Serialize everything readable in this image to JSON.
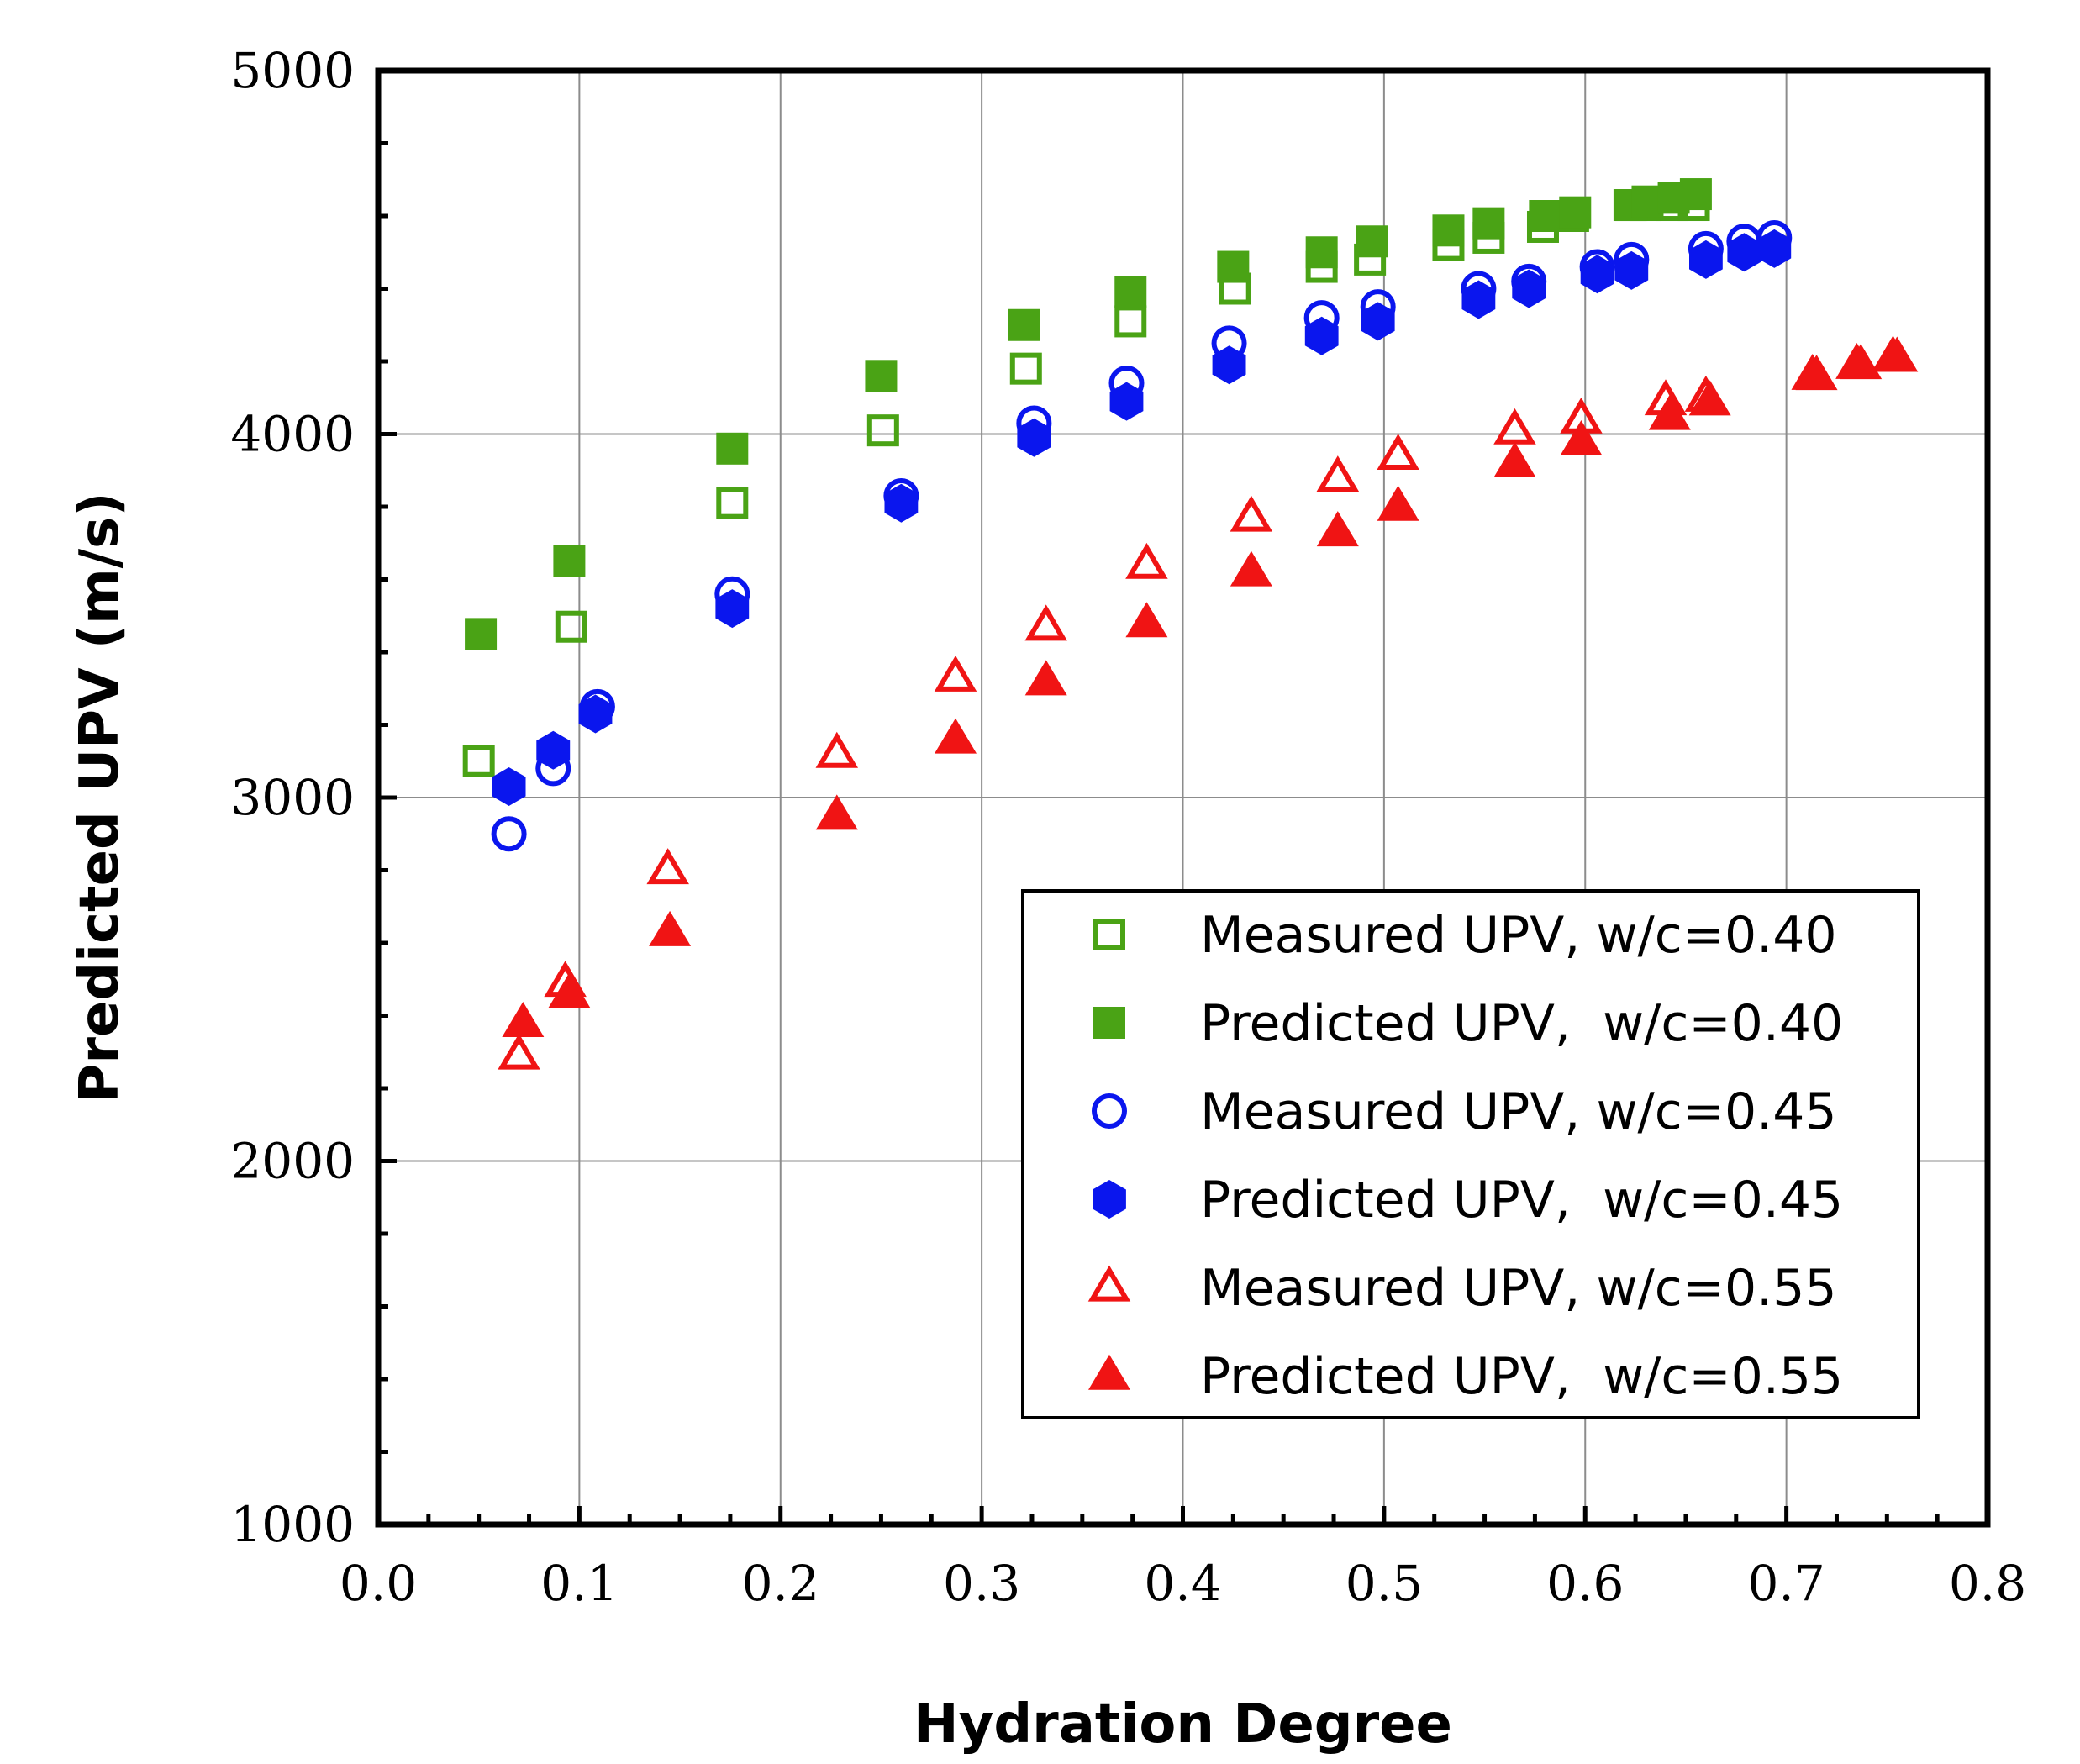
{
  "chart_data": {
    "type": "scatter",
    "title": "",
    "xlabel": "Hydration Degree",
    "ylabel": "Predicted UPV (m/s)",
    "xlim": [
      0.0,
      0.8
    ],
    "ylim": [
      1000,
      5000
    ],
    "xticks": [
      "0.0",
      "0.1",
      "0.2",
      "0.3",
      "0.4",
      "0.5",
      "0.6",
      "0.7",
      "0.8"
    ],
    "yticks": [
      "1000",
      "2000",
      "3000",
      "4000",
      "5000"
    ],
    "grid": true,
    "legend_position": "lower-right",
    "series": [
      {
        "name": "Measured UPV, w/c=0.40",
        "marker": "square-open",
        "color": "#4aa315",
        "x": [
          0.05,
          0.096,
          0.176,
          0.251,
          0.322,
          0.374,
          0.426,
          0.469,
          0.493,
          0.532,
          0.552,
          0.579,
          0.594,
          0.622,
          0.63,
          0.643,
          0.654
        ],
        "y": [
          3100,
          3470,
          3810,
          4010,
          4180,
          4310,
          4400,
          4460,
          4480,
          4520,
          4540,
          4570,
          4600,
          4630,
          4630,
          4630,
          4630
        ]
      },
      {
        "name": "Predicted UPV,  w/c=0.40",
        "marker": "square-filled",
        "color": "#4aa315",
        "x": [
          0.051,
          0.095,
          0.176,
          0.25,
          0.321,
          0.374,
          0.425,
          0.469,
          0.494,
          0.532,
          0.552,
          0.58,
          0.595,
          0.623,
          0.631,
          0.644,
          0.655
        ],
        "y": [
          3450,
          3650,
          3960,
          4160,
          4300,
          4390,
          4460,
          4500,
          4530,
          4560,
          4580,
          4600,
          4610,
          4630,
          4640,
          4650,
          4660
        ]
      },
      {
        "name": "Measured UPV, w/c=0.45",
        "marker": "circle-open",
        "color": "#0a16ee",
        "x": [
          0.065,
          0.087,
          0.109,
          0.176,
          0.26,
          0.326,
          0.372,
          0.423,
          0.469,
          0.497,
          0.547,
          0.572,
          0.606,
          0.623,
          0.66,
          0.679,
          0.694
        ],
        "y": [
          2900,
          3080,
          3250,
          3560,
          3830,
          4030,
          4140,
          4250,
          4320,
          4350,
          4400,
          4420,
          4460,
          4480,
          4510,
          4530,
          4540
        ]
      },
      {
        "name": "Predicted UPV,  w/c=0.45",
        "marker": "hexagon-filled",
        "color": "#0a16ee",
        "x": [
          0.065,
          0.087,
          0.108,
          0.176,
          0.26,
          0.326,
          0.372,
          0.423,
          0.469,
          0.497,
          0.547,
          0.572,
          0.606,
          0.623,
          0.66,
          0.679,
          0.694
        ],
        "y": [
          3030,
          3130,
          3230,
          3520,
          3810,
          3990,
          4090,
          4190,
          4270,
          4310,
          4370,
          4400,
          4440,
          4450,
          4480,
          4500,
          4510
        ]
      },
      {
        "name": "Measured UPV, w/c=0.55",
        "marker": "triangle-open",
        "color": "#f01414",
        "x": [
          0.07,
          0.093,
          0.144,
          0.228,
          0.287,
          0.332,
          0.382,
          0.434,
          0.477,
          0.507,
          0.565,
          0.598,
          0.64,
          0.66,
          0.713,
          0.735,
          0.753
        ],
        "y": [
          2290,
          2490,
          2800,
          3120,
          3330,
          3470,
          3640,
          3770,
          3880,
          3940,
          4010,
          4040,
          4090,
          4100,
          4160,
          4190,
          4210
        ]
      },
      {
        "name": "Predicted UPV,  w/c=0.55",
        "marker": "triangle-filled",
        "color": "#f01414",
        "x": [
          0.072,
          0.095,
          0.145,
          0.228,
          0.287,
          0.332,
          0.382,
          0.434,
          0.477,
          0.507,
          0.565,
          0.598,
          0.642,
          0.662,
          0.715,
          0.737,
          0.755
        ],
        "y": [
          2380,
          2460,
          2630,
          2950,
          3160,
          3320,
          3480,
          3620,
          3730,
          3800,
          3920,
          3980,
          4050,
          4090,
          4160,
          4190,
          4210
        ]
      }
    ]
  }
}
